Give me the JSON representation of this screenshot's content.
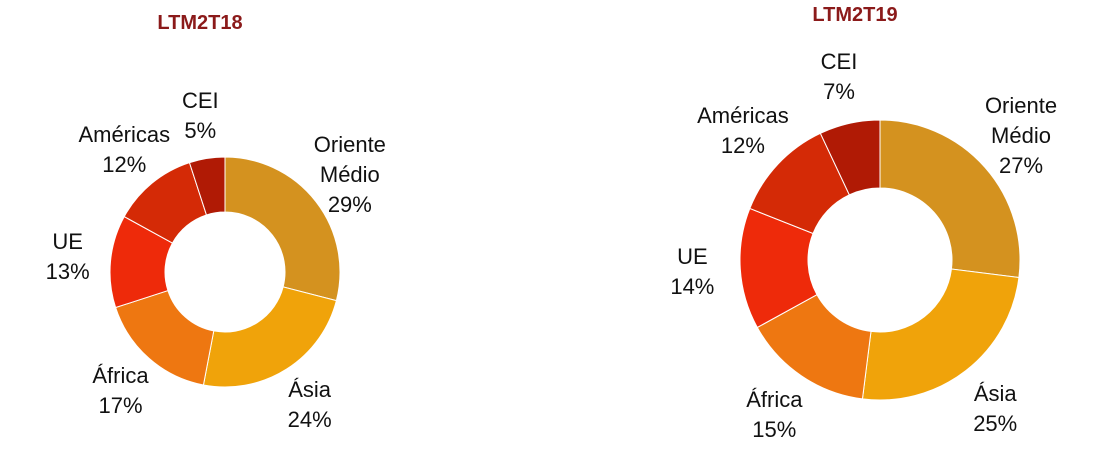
{
  "chart_data": [
    {
      "type": "pie",
      "donut": true,
      "title": "LTM2T18",
      "categories": [
        "Oriente Médio",
        "Ásia",
        "África",
        "UE",
        "Américas",
        "CEI"
      ],
      "values": [
        29,
        24,
        17,
        13,
        12,
        5
      ],
      "value_labels": [
        "29%",
        "24%",
        "17%",
        "13%",
        "12%",
        "5%"
      ],
      "colors": [
        "#d4921f",
        "#f0a30a",
        "#ee7711",
        "#ee2a0a",
        "#d42a06",
        "#b01a05"
      ]
    },
    {
      "type": "pie",
      "donut": true,
      "title": "LTM2T19",
      "categories": [
        "Oriente Médio",
        "Ásia",
        "África",
        "UE",
        "Américas",
        "CEI"
      ],
      "values": [
        27,
        25,
        15,
        14,
        12,
        7
      ],
      "value_labels": [
        "27%",
        "25%",
        "15%",
        "14%",
        "12%",
        "7%"
      ],
      "colors": [
        "#d4921f",
        "#f0a30a",
        "#ee7711",
        "#ee2a0a",
        "#d42a06",
        "#b01a05"
      ]
    }
  ]
}
